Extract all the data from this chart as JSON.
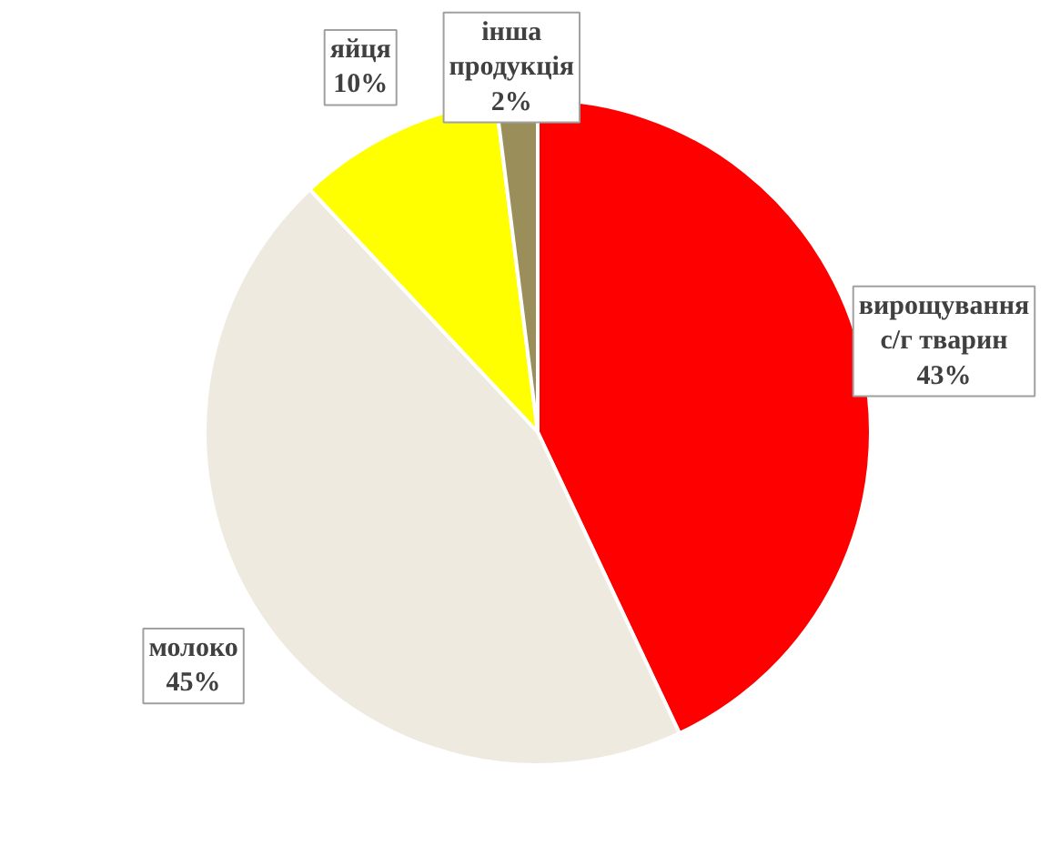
{
  "chart_data": {
    "type": "pie",
    "categories": [
      "вирощування с/г тварин",
      "молоко",
      "яйця",
      "інша продукція"
    ],
    "values": [
      43,
      45,
      10,
      2
    ],
    "colors": [
      "#ff0000",
      "#eeeae0",
      "#ffff00",
      "#9a8f5a"
    ],
    "value_labels": [
      "43%",
      "45%",
      "10%",
      "2%"
    ]
  }
}
